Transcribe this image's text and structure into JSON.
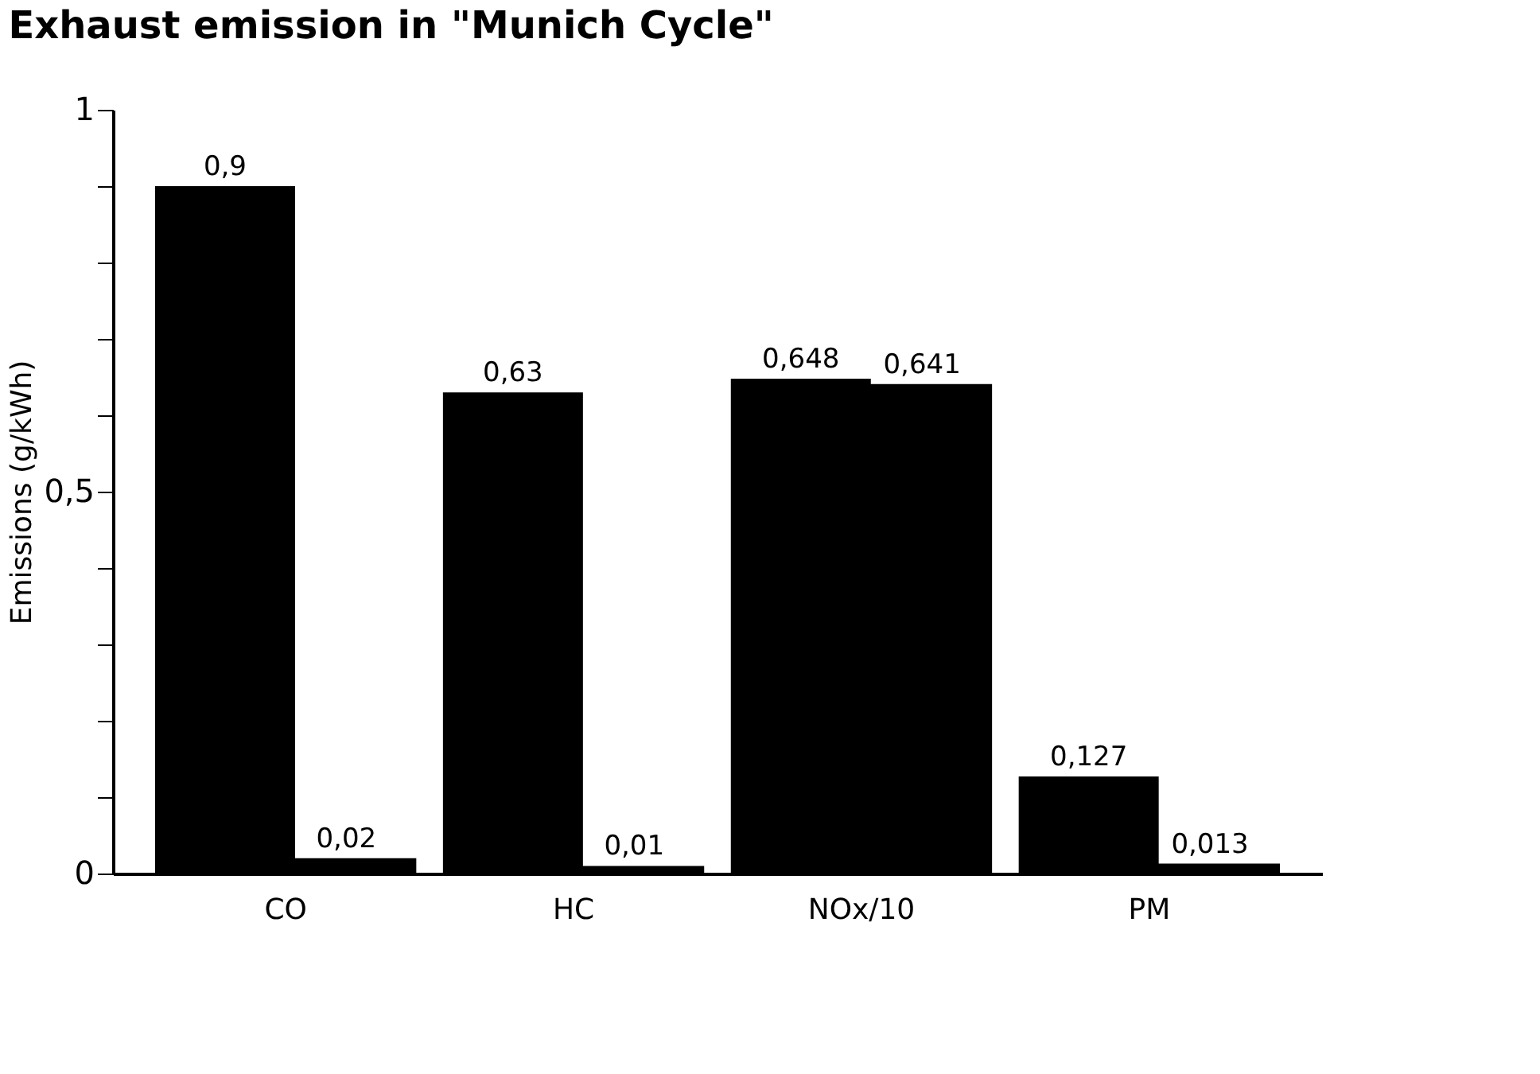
{
  "chart_data": {
    "type": "bar",
    "title": "Exhaust emission in \"Munich Cycle\"",
    "ylabel": "Emissions (g/kWh)",
    "categories": [
      "CO",
      "HC",
      "NOx/10",
      "PM"
    ],
    "series": [
      {
        "color": "#000000",
        "values": [
          0.9,
          0.63,
          0.648,
          0.127
        ],
        "value_labels": [
          "0,9",
          "0,63",
          "0,648",
          "0,127"
        ]
      },
      {
        "color": "#000000",
        "values": [
          0.02,
          0.01,
          0.641,
          0.013
        ],
        "value_labels": [
          "0,02",
          "0,01",
          "0,641",
          "0,013"
        ]
      }
    ],
    "ylim": [
      0,
      1
    ],
    "yticks": [
      0,
      {
        "value": 0.1,
        "label": null
      },
      {
        "value": 0.2,
        "label": null
      },
      {
        "value": 0.3,
        "label": null
      },
      {
        "value": 0.4,
        "label": null
      },
      {
        "value": 0.5,
        "label": "0,5"
      },
      {
        "value": 0.6,
        "label": null
      },
      {
        "value": 0.7,
        "label": null
      },
      {
        "value": 0.8,
        "label": null
      },
      {
        "value": 0.9,
        "label": null
      },
      1
    ],
    "grid": false,
    "legend": false
  }
}
